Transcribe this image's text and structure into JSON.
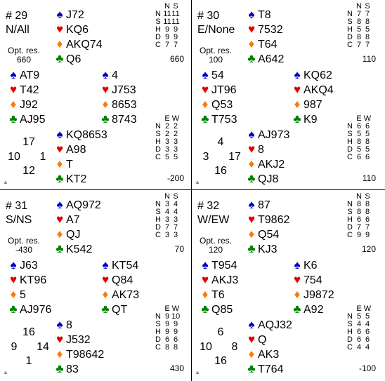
{
  "suit_icons": {
    "S": "♠",
    "H": "♥",
    "D": "♦",
    "C": "♣"
  },
  "boards": [
    {
      "number": "# 29",
      "dealer_vul": "N/All",
      "opt_label": "Opt. res.",
      "opt_value": "660",
      "north": {
        "S": "J72",
        "H": "KQ6",
        "D": "AKQ74",
        "C": "Q6"
      },
      "west": {
        "S": "AT9",
        "H": "T42",
        "D": "J92",
        "C": "AJ95"
      },
      "east": {
        "S": "4",
        "H": "J753",
        "D": "8653",
        "C": "8743"
      },
      "south": {
        "S": "KQ8653",
        "H": "A98",
        "D": "T",
        "C": "KT2"
      },
      "hcp": {
        "n": "17",
        "w": "10",
        "e": "1",
        "s": "12"
      },
      "ns_table": {
        "h1": "N",
        "h2": "S",
        "rows": [
          [
            "N",
            "11",
            "11"
          ],
          [
            "S",
            "11",
            "11"
          ],
          [
            "H",
            "9",
            "9"
          ],
          [
            "D",
            "9",
            "9"
          ],
          [
            "C",
            "7",
            "7"
          ]
        ]
      },
      "ns_score": "660",
      "ew_table": {
        "h1": "E",
        "h2": "W",
        "rows": [
          [
            "N",
            "2",
            "2"
          ],
          [
            "S",
            "2",
            "2"
          ],
          [
            "H",
            "3",
            "3"
          ],
          [
            "D",
            "3",
            "3"
          ],
          [
            "C",
            "5",
            "5"
          ]
        ]
      },
      "ew_score": "-200"
    },
    {
      "number": "# 30",
      "dealer_vul": "E/None",
      "opt_label": "Opt. res.",
      "opt_value": "100",
      "north": {
        "S": "T8",
        "H": "7532",
        "D": "T64",
        "C": "A642"
      },
      "west": {
        "S": "54",
        "H": "JT96",
        "D": "Q53",
        "C": "T753"
      },
      "east": {
        "S": "KQ62",
        "H": "AKQ4",
        "D": "987",
        "C": "K9"
      },
      "south": {
        "S": "AJ973",
        "H": "8",
        "D": "AKJ2",
        "C": "QJ8"
      },
      "hcp": {
        "n": "4",
        "w": "3",
        "e": "17",
        "s": "16"
      },
      "ns_table": {
        "h1": "N",
        "h2": "S",
        "rows": [
          [
            "N",
            "7",
            "7"
          ],
          [
            "S",
            "8",
            "8"
          ],
          [
            "H",
            "5",
            "5"
          ],
          [
            "D",
            "8",
            "8"
          ],
          [
            "C",
            "7",
            "7"
          ]
        ]
      },
      "ns_score": "110",
      "ew_table": {
        "h1": "E",
        "h2": "W",
        "rows": [
          [
            "N",
            "6",
            "6"
          ],
          [
            "S",
            "5",
            "5"
          ],
          [
            "H",
            "8",
            "8"
          ],
          [
            "D",
            "5",
            "5"
          ],
          [
            "C",
            "6",
            "6"
          ]
        ]
      },
      "ew_score": "110"
    },
    {
      "number": "# 31",
      "dealer_vul": "S/NS",
      "opt_label": "Opt. res.",
      "opt_value": "-430",
      "north": {
        "S": "AQ972",
        "H": "A7",
        "D": "QJ",
        "C": "K542"
      },
      "west": {
        "S": "J63",
        "H": "KT96",
        "D": "5",
        "C": "AJ976"
      },
      "east": {
        "S": "KT54",
        "H": "Q84",
        "D": "AK73",
        "C": "QT"
      },
      "south": {
        "S": "8",
        "H": "J532",
        "D": "T98642",
        "C": "83"
      },
      "hcp": {
        "n": "16",
        "w": "9",
        "e": "14",
        "s": "1"
      },
      "ns_table": {
        "h1": "N",
        "h2": "S",
        "rows": [
          [
            "N",
            "3",
            "4"
          ],
          [
            "S",
            "4",
            "4"
          ],
          [
            "H",
            "3",
            "3"
          ],
          [
            "D",
            "7",
            "7"
          ],
          [
            "C",
            "3",
            "3"
          ]
        ]
      },
      "ns_score": "70",
      "ew_table": {
        "h1": "E",
        "h2": "W",
        "rows": [
          [
            "N",
            "9",
            "10"
          ],
          [
            "S",
            "9",
            "9"
          ],
          [
            "H",
            "9",
            "9"
          ],
          [
            "D",
            "6",
            "6"
          ],
          [
            "C",
            "8",
            "8"
          ]
        ]
      },
      "ew_score": "430"
    },
    {
      "number": "# 32",
      "dealer_vul": "W/EW",
      "opt_label": "Opt. res.",
      "opt_value": "120",
      "north": {
        "S": "87",
        "H": "T9862",
        "D": "Q54",
        "C": "KJ3"
      },
      "west": {
        "S": "T954",
        "H": "AKJ3",
        "D": "T6",
        "C": "Q85"
      },
      "east": {
        "S": "K6",
        "H": "754",
        "D": "J9872",
        "C": "A92"
      },
      "south": {
        "S": "AQJ32",
        "H": "Q",
        "D": "AK3",
        "C": "T764"
      },
      "hcp": {
        "n": "6",
        "w": "10",
        "e": "8",
        "s": "16"
      },
      "ns_table": {
        "h1": "N",
        "h2": "S",
        "rows": [
          [
            "N",
            "8",
            "8"
          ],
          [
            "S",
            "8",
            "8"
          ],
          [
            "H",
            "6",
            "6"
          ],
          [
            "D",
            "7",
            "7"
          ],
          [
            "C",
            "9",
            "9"
          ]
        ]
      },
      "ns_score": "120",
      "ew_table": {
        "h1": "E",
        "h2": "W",
        "rows": [
          [
            "N",
            "5",
            "5"
          ],
          [
            "S",
            "4",
            "4"
          ],
          [
            "H",
            "6",
            "6"
          ],
          [
            "D",
            "6",
            "6"
          ],
          [
            "C",
            "4",
            "4"
          ]
        ]
      },
      "ew_score": "-100"
    }
  ]
}
